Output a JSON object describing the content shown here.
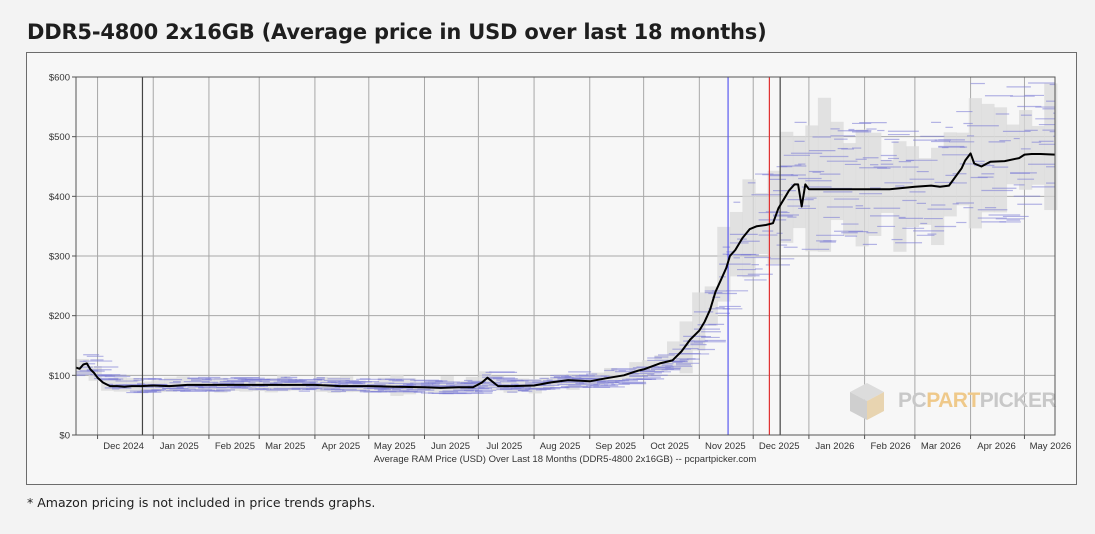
{
  "title": "DDR5-4800 2x16GB (Average price in USD over last 18 months)",
  "footnote": "* Amazon pricing is not included in price trends graphs.",
  "logo": {
    "part1": "PC",
    "part2": "PART",
    "part3": "PICKER"
  },
  "colors": {
    "line": "#000000",
    "range_fill": "#d9d9d9",
    "retailer_lines": "#7b7bd6",
    "marker_blue": "#5b5bf0",
    "marker_red": "#e03030",
    "marker_dark": "#444444",
    "grid": "#a8a8a8",
    "logo_gray": "#c4c4c4",
    "logo_accent": "#efc98a"
  },
  "chart_data": {
    "type": "line",
    "title": "",
    "xlabel": "Average RAM Price (USD) Over Last 18 Months (DDR5-4800 2x16GB) -- pcpartpicker.com",
    "ylabel": "",
    "ylim": [
      0,
      600
    ],
    "xlim": [
      "2024-11-19",
      "2026-05-18"
    ],
    "y_ticks": [
      {
        "value": 0,
        "label": "$0"
      },
      {
        "value": 100,
        "label": "$100"
      },
      {
        "value": 200,
        "label": "$200"
      },
      {
        "value": 300,
        "label": "$300"
      },
      {
        "value": 400,
        "label": "$400"
      },
      {
        "value": 500,
        "label": "$500"
      },
      {
        "value": 600,
        "label": "$600"
      }
    ],
    "x_ticks": [
      {
        "date": "2024-12-01",
        "label": "Dec 2024"
      },
      {
        "date": "2025-01-01",
        "label": "Jan 2025"
      },
      {
        "date": "2025-02-01",
        "label": "Feb 2025"
      },
      {
        "date": "2025-03-01",
        "label": "Mar 2025"
      },
      {
        "date": "2025-04-01",
        "label": "Apr 2025"
      },
      {
        "date": "2025-05-01",
        "label": "May 2025"
      },
      {
        "date": "2025-06-01",
        "label": "Jun 2025"
      },
      {
        "date": "2025-07-01",
        "label": "Jul 2025"
      },
      {
        "date": "2025-08-01",
        "label": "Aug 2025"
      },
      {
        "date": "2025-09-01",
        "label": "Sep 2025"
      },
      {
        "date": "2025-10-01",
        "label": "Oct 2025"
      },
      {
        "date": "2025-11-01",
        "label": "Nov 2025"
      },
      {
        "date": "2025-12-01",
        "label": "Dec 2025"
      },
      {
        "date": "2026-01-01",
        "label": "Jan 2026"
      },
      {
        "date": "2026-02-01",
        "label": "Feb 2026"
      },
      {
        "date": "2026-03-01",
        "label": "Mar 2026"
      },
      {
        "date": "2026-04-01",
        "label": "Apr 2026"
      },
      {
        "date": "2026-05-01",
        "label": "May 2026"
      }
    ],
    "grid": true,
    "legend": "none",
    "vertical_markers": [
      {
        "date": "2024-12-26",
        "color": "#444444"
      },
      {
        "date": "2025-11-17",
        "color": "#5b5bf0"
      },
      {
        "date": "2025-12-10",
        "color": "#e03030"
      },
      {
        "date": "2025-12-16",
        "color": "#444444"
      }
    ],
    "series": [
      {
        "x": [
          "2024-11-19",
          "2024-11-21",
          "2024-11-23",
          "2024-11-25",
          "2024-11-27",
          "2024-11-29",
          "2024-12-01",
          "2024-12-04",
          "2024-12-08",
          "2024-12-12",
          "2024-12-16",
          "2024-12-20",
          "2024-12-25",
          "2025-01-01",
          "2025-01-10",
          "2025-01-20",
          "2025-02-01",
          "2025-02-15",
          "2025-03-01",
          "2025-03-15",
          "2025-04-01",
          "2025-04-15",
          "2025-05-01",
          "2025-05-15",
          "2025-06-01",
          "2025-06-10",
          "2025-06-20",
          "2025-06-28",
          "2025-07-03",
          "2025-07-06",
          "2025-07-12",
          "2025-07-20",
          "2025-08-01",
          "2025-08-10",
          "2025-08-20",
          "2025-09-01",
          "2025-09-10",
          "2025-09-20",
          "2025-09-28",
          "2025-10-01",
          "2025-10-10",
          "2025-10-17",
          "2025-10-22",
          "2025-10-27",
          "2025-11-01",
          "2025-11-04",
          "2025-11-07",
          "2025-11-10",
          "2025-11-13",
          "2025-11-16",
          "2025-11-18",
          "2025-11-21",
          "2025-11-25",
          "2025-11-29",
          "2025-12-03",
          "2025-12-08",
          "2025-12-12",
          "2025-12-15",
          "2025-12-18",
          "2025-12-21",
          "2025-12-24",
          "2025-12-26",
          "2025-12-28",
          "2025-12-30",
          "2026-01-01",
          "2026-01-04",
          "2026-01-10",
          "2026-01-20",
          "2026-02-01",
          "2026-02-15",
          "2026-03-01",
          "2026-03-10",
          "2026-03-15",
          "2026-03-20",
          "2026-03-27",
          "2026-03-29",
          "2026-04-01",
          "2026-04-03",
          "2026-04-07",
          "2026-04-12",
          "2026-04-20",
          "2026-04-28",
          "2026-05-01",
          "2026-05-05",
          "2026-05-10",
          "2026-05-18"
        ],
        "values": [
          113,
          111,
          118,
          120,
          110,
          104,
          96,
          88,
          82,
          82,
          81,
          82,
          82,
          83,
          82,
          84,
          84,
          84,
          84,
          84,
          84,
          82,
          82,
          81,
          80,
          79,
          80,
          80,
          88,
          96,
          82,
          82,
          83,
          88,
          92,
          90,
          95,
          100,
          108,
          110,
          120,
          125,
          140,
          160,
          175,
          190,
          210,
          240,
          260,
          280,
          300,
          310,
          330,
          345,
          350,
          352,
          355,
          380,
          395,
          410,
          420,
          420,
          383,
          420,
          412,
          412,
          412,
          412,
          412,
          412,
          416,
          418,
          416,
          418,
          447,
          460,
          472,
          455,
          450,
          458,
          459,
          464,
          470,
          471,
          471,
          470
        ]
      }
    ]
  }
}
